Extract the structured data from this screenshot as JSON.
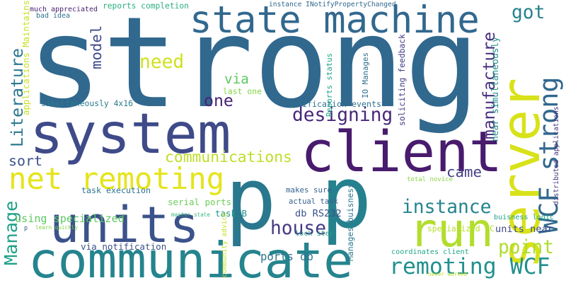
{
  "words": [
    {
      "text": "strong",
      "color": "#31688e"
    },
    {
      "text": "system",
      "color": "#3e4a89"
    },
    {
      "text": "p",
      "color": "#26818e"
    },
    {
      "text": "p",
      "color": "#2a788e"
    },
    {
      "text": "units",
      "color": "#3b528b"
    },
    {
      "text": "communicate",
      "color": "#25848e"
    },
    {
      "text": "client",
      "color": "#481b6d"
    },
    {
      "text": "server",
      "color": "#d8e219"
    },
    {
      "text": "run",
      "color": "#b2dd2d"
    },
    {
      "text": "state machine",
      "color": "#31688e"
    },
    {
      "text": "net remoting",
      "color": "#e5e419"
    },
    {
      "text": "remoting WCF",
      "color": "#21908d"
    },
    {
      "text": "WCF strong",
      "color": "#31688e"
    },
    {
      "text": "designing",
      "color": "#482878"
    },
    {
      "text": "communications",
      "color": "#bddf26"
    },
    {
      "text": "instance",
      "color": "#25848e"
    },
    {
      "text": "house",
      "color": "#443983"
    },
    {
      "text": "point",
      "color": "#addc30"
    },
    {
      "text": "manufacture",
      "color": "#472f7d"
    },
    {
      "text": "Literature",
      "color": "#2a788e"
    },
    {
      "text": "Manage",
      "color": "#1fa088"
    },
    {
      "text": "model",
      "color": "#3e4a89"
    },
    {
      "text": "need",
      "color": "#d0e11c"
    },
    {
      "text": "got",
      "color": "#26828e"
    },
    {
      "text": "one",
      "color": "#482475"
    },
    {
      "text": "via",
      "color": "#5ec962"
    },
    {
      "text": "came",
      "color": "#433e85"
    },
    {
      "text": "sort",
      "color": "#3b528b"
    },
    {
      "text": "specialized PC",
      "color": "#b5de2b"
    },
    {
      "text": "serial ports",
      "color": "#6ccd5a"
    },
    {
      "text": "using specialized",
      "color": "#5ec962"
    },
    {
      "text": "units near",
      "color": "#3e4989"
    },
    {
      "text": "ports db",
      "color": "#2c728e"
    },
    {
      "text": "db RS232",
      "color": "#3a548c"
    },
    {
      "text": "actual task",
      "color": "#34618d"
    },
    {
      "text": "task B",
      "color": "#1f958b"
    },
    {
      "text": "master state",
      "color": "#35b779"
    },
    {
      "text": "lock step",
      "color": "#1e9c89"
    },
    {
      "text": "buisness logic",
      "color": "#20a486"
    },
    {
      "text": "coordinates client",
      "color": "#21a685"
    },
    {
      "text": "task execution",
      "color": "#2c728e"
    },
    {
      "text": "makes sure",
      "color": "#33638d"
    },
    {
      "text": "learn quickly",
      "color": "#84d44b"
    },
    {
      "text": "via notification",
      "color": "#3b528b"
    },
    {
      "text": "last one",
      "color": "#86d549"
    },
    {
      "text": "simultaneously 4x16",
      "color": "#287c8e"
    },
    {
      "text": "notification events",
      "color": "#2d708e"
    },
    {
      "text": "much appreciated",
      "color": "#481f70"
    },
    {
      "text": "bad idea",
      "color": "#2e6f8e"
    },
    {
      "text": "reports completion",
      "color": "#29af7f"
    },
    {
      "text": "instance INotifyPropertyChanged",
      "color": "#31688e"
    },
    {
      "text": "applications Maintains",
      "color": "#c8e020"
    },
    {
      "text": "Reports status",
      "color": "#1fa287"
    },
    {
      "text": "IO Manages",
      "color": "#2e6e8e"
    },
    {
      "text": "soliciting feedback",
      "color": "#443a83"
    },
    {
      "text": "near simultaneously",
      "color": "#20928c"
    },
    {
      "text": "distributed applications",
      "color": "#46337e"
    },
    {
      "text": "total novice",
      "color": "#8bd646"
    },
    {
      "text": "Manages buisness",
      "color": "#2a788e"
    },
    {
      "text": "community advice",
      "color": "#c2df23"
    },
    {
      "text": "never worked",
      "color": "#bade28"
    },
    {
      "text": "p",
      "color": "#3b528b"
    }
  ]
}
